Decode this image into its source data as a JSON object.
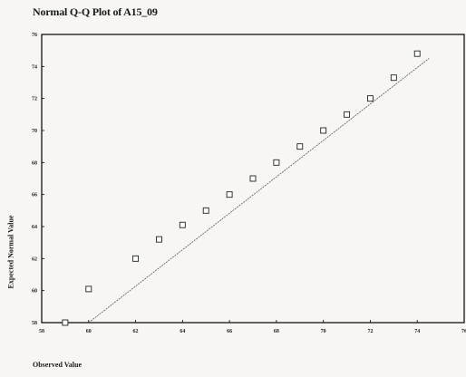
{
  "chart_data": {
    "type": "scatter",
    "title": "Normal Q-Q Plot of A15_09",
    "xlabel": "Observed Value",
    "ylabel": "Expected Normal Value",
    "xlim": [
      58,
      76
    ],
    "ylim": [
      58,
      76
    ],
    "xticks": [
      58,
      60,
      62,
      64,
      66,
      68,
      70,
      72,
      74,
      76
    ],
    "yticks": [
      58,
      60,
      62,
      64,
      66,
      68,
      70,
      72,
      74,
      76
    ],
    "x": [
      59,
      60,
      62,
      63,
      64,
      65,
      66,
      67,
      68,
      69,
      70,
      71,
      72,
      73,
      74
    ],
    "y": [
      58.0,
      60.1,
      62.0,
      63.2,
      64.1,
      65.0,
      66.0,
      67.0,
      68.0,
      69.0,
      70.0,
      71.0,
      72.0,
      73.3,
      74.8
    ],
    "reference_line": {
      "x": [
        60,
        74.5
      ],
      "y": [
        58.0,
        74.5
      ]
    },
    "grid": false,
    "marker": "open-square",
    "colors": {
      "line": "#555555",
      "marker": "#222222",
      "frame": "#000000"
    }
  }
}
